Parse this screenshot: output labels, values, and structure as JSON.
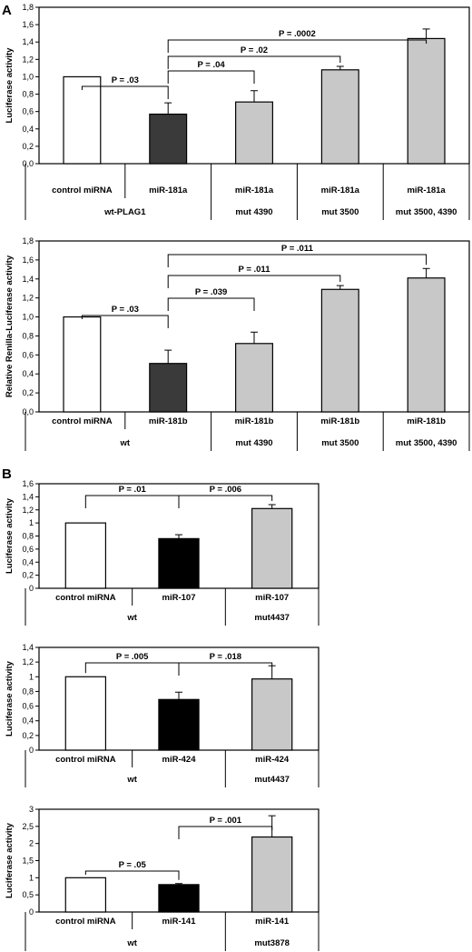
{
  "panels": [
    {
      "letter": "A"
    },
    {
      "letter": "B"
    }
  ],
  "chart_data": [
    {
      "type": "bar",
      "ylabel": "Luciferase activity",
      "ylim": [
        0,
        1.8
      ],
      "yticks": [
        "0,0",
        "0,2",
        "0,4",
        "0,6",
        "0,8",
        "1,0",
        "1,2",
        "1,4",
        "1,6",
        "1,8"
      ],
      "categories": [
        "control miRNA",
        "miR-181a",
        "miR-181a",
        "miR-181a",
        "miR-181a"
      ],
      "groups": [
        "wt-PLAG1",
        "",
        "mut 4390",
        "mut 3500",
        "mut 3500, 4390"
      ],
      "values": [
        1.0,
        0.57,
        0.71,
        1.08,
        1.44
      ],
      "errors": [
        0,
        0.13,
        0.13,
        0.04,
        0.11
      ],
      "colors": [
        "#ffffff",
        "#3a3a3a",
        "#c8c8c8",
        "#c8c8c8",
        "#c8c8c8"
      ],
      "annotations": [
        {
          "label": "P = .03",
          "from": 0,
          "to": 1
        },
        {
          "label": "P = .04",
          "from": 1,
          "to": 2
        },
        {
          "label": "P = .02",
          "from": 1,
          "to": 3
        },
        {
          "label": "P = .0002",
          "from": 1,
          "to": 4
        }
      ]
    },
    {
      "type": "bar",
      "ylabel": "Relative Renilla-Luciferase activity",
      "ylim": [
        0,
        1.8
      ],
      "yticks": [
        "0,0",
        "0,2",
        "0,4",
        "0,6",
        "0,8",
        "1,0",
        "1,2",
        "1,4",
        "1,6",
        "1,8"
      ],
      "categories": [
        "control miRNA",
        "miR-181b",
        "miR-181b",
        "miR-181b",
        "miR-181b"
      ],
      "groups": [
        "wt",
        "",
        "mut 4390",
        "mut 3500",
        "mut 3500, 4390"
      ],
      "values": [
        1.0,
        0.51,
        0.72,
        1.29,
        1.41
      ],
      "errors": [
        0,
        0.14,
        0.12,
        0.04,
        0.1
      ],
      "colors": [
        "#ffffff",
        "#3a3a3a",
        "#c8c8c8",
        "#c8c8c8",
        "#c8c8c8"
      ],
      "annotations": [
        {
          "label": "P = .03",
          "from": 0,
          "to": 1
        },
        {
          "label": "P = .039",
          "from": 1,
          "to": 2
        },
        {
          "label": "P = .011",
          "from": 1,
          "to": 3
        },
        {
          "label": "P = .011",
          "from": 1,
          "to": 4
        }
      ]
    },
    {
      "type": "bar",
      "ylabel": "Luciferase activity",
      "ylim": [
        0,
        1.6
      ],
      "yticks": [
        "0",
        "0,2",
        "0,4",
        "0,6",
        "0,8",
        "1",
        "1,2",
        "1,4",
        "1,6"
      ],
      "categories": [
        "control miRNA",
        "miR-107",
        "miR-107"
      ],
      "groups": [
        "wt",
        "",
        "mut4437"
      ],
      "values": [
        1.0,
        0.76,
        1.22
      ],
      "errors": [
        0,
        0.06,
        0.06
      ],
      "colors": [
        "#ffffff",
        "#000000",
        "#c8c8c8"
      ],
      "annotations": [
        {
          "label": "P = .01",
          "from": 0,
          "to": 1
        },
        {
          "label": "P = .006",
          "from": 1,
          "to": 2
        }
      ]
    },
    {
      "type": "bar",
      "ylabel": "Luciferase activity",
      "ylim": [
        0,
        1.4
      ],
      "yticks": [
        "0",
        "0,2",
        "0,4",
        "0,6",
        "0,8",
        "1",
        "1,2",
        "1,4"
      ],
      "categories": [
        "control miRNA",
        "miR-424",
        "miR-424"
      ],
      "groups": [
        "wt",
        "",
        "mut4437"
      ],
      "values": [
        1.0,
        0.69,
        0.97
      ],
      "errors": [
        0,
        0.1,
        0.18
      ],
      "colors": [
        "#ffffff",
        "#000000",
        "#c8c8c8"
      ],
      "annotations": [
        {
          "label": "P = .005",
          "from": 0,
          "to": 1
        },
        {
          "label": "P = .018",
          "from": 1,
          "to": 2
        }
      ]
    },
    {
      "type": "bar",
      "ylabel": "Luciferase activity",
      "ylim": [
        0,
        3
      ],
      "yticks": [
        "0",
        "0,5",
        "1",
        "1,5",
        "2",
        "2,5",
        "3"
      ],
      "categories": [
        "control miRNA",
        "miR-141",
        "miR-141"
      ],
      "groups": [
        "wt",
        "",
        "mut3878"
      ],
      "values": [
        1.0,
        0.8,
        2.19
      ],
      "errors": [
        0,
        0.03,
        0.62
      ],
      "colors": [
        "#ffffff",
        "#000000",
        "#c8c8c8"
      ],
      "annotations": [
        {
          "label": "P = .05",
          "from": 0,
          "to": 1
        },
        {
          "label": "P = .001",
          "from": 1,
          "to": 2
        }
      ]
    }
  ]
}
